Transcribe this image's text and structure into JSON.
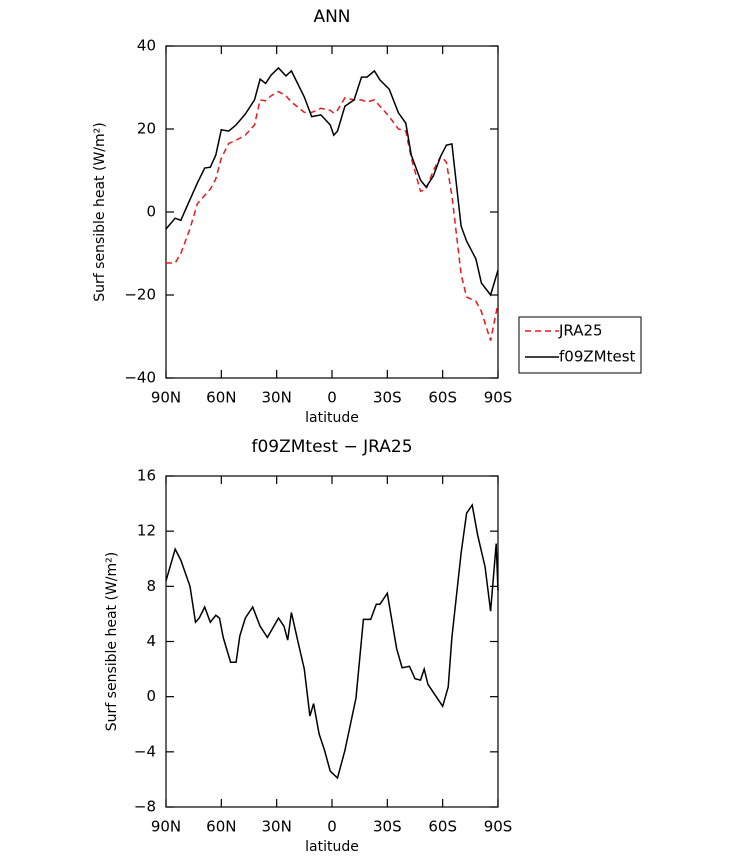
{
  "chart_data": [
    {
      "type": "line",
      "title": "ANN",
      "x_label": "latitude",
      "y_label": "Surf sensible heat (W/m²)",
      "x": [
        90,
        85,
        82,
        77,
        73,
        69,
        66,
        63,
        60,
        56,
        52,
        47,
        42,
        39,
        36,
        33,
        29,
        25,
        22,
        15,
        11,
        6,
        1,
        -1,
        -3,
        -7,
        -12,
        -16,
        -19,
        -23,
        -26,
        -31,
        -36,
        -40,
        -43,
        -48,
        -51,
        -55,
        -59,
        -62,
        -65,
        -70,
        -73,
        -78,
        -81,
        -86,
        -90
      ],
      "series": [
        {
          "name": "JRA25",
          "color": "#e8191c",
          "dash": true,
          "values": [
            -12.3,
            -12.3,
            -10,
            -4,
            2,
            4,
            5.5,
            8,
            13,
            16.5,
            17.3,
            18.5,
            21,
            27,
            26.8,
            28,
            29,
            28,
            26.5,
            24,
            24,
            25,
            24.5,
            23.8,
            24.5,
            27.5,
            27,
            27,
            26.5,
            27,
            25.5,
            23,
            20,
            19.5,
            13,
            5,
            5.5,
            10,
            13.5,
            12,
            4,
            -15,
            -20.5,
            -21.5,
            -24,
            -31,
            -22
          ]
        },
        {
          "name": "f09ZMtest",
          "color": "#000000",
          "dash": false,
          "values": [
            -4.1,
            -1.5,
            -2,
            3,
            7,
            10.6,
            10.8,
            13.7,
            19.8,
            19.5,
            21,
            23.6,
            27,
            32,
            31,
            33,
            34.7,
            32.8,
            34,
            27.7,
            23,
            23.4,
            21,
            18.5,
            19.5,
            25.5,
            27,
            32.5,
            32.5,
            34,
            31.8,
            29.6,
            23.9,
            21.4,
            13.7,
            7.7,
            6,
            8.7,
            13.5,
            16.1,
            16.4,
            -3.4,
            -7,
            -11.3,
            -17.1,
            -20,
            -14
          ]
        }
      ],
      "xlim": [
        90,
        -90
      ],
      "xticks": [
        {
          "value": 90,
          "label": "90N"
        },
        {
          "value": 60,
          "label": "60N"
        },
        {
          "value": 30,
          "label": "30N"
        },
        0,
        {
          "value": -30,
          "label": "30S"
        },
        {
          "value": -60,
          "label": "60S"
        },
        {
          "value": -90,
          "label": "90S"
        }
      ],
      "ylim": [
        -40,
        40
      ],
      "yticks": [
        {
          "value": -40,
          "label": "−40"
        },
        {
          "value": -20,
          "label": "−20"
        },
        0,
        20,
        40
      ],
      "legend": "right"
    },
    {
      "type": "line",
      "title": "f09ZMtest − JRA25",
      "x_label": "latitude",
      "y_label": "Surf sensible heat (W/m²)",
      "x": [
        90,
        85,
        82,
        77,
        74,
        72,
        69,
        66,
        63,
        61,
        59,
        55,
        52,
        50,
        47,
        43,
        39,
        35,
        29,
        26,
        24,
        22,
        19,
        15,
        12,
        10,
        7,
        4,
        1,
        -3,
        -7,
        -13,
        -17,
        -21,
        -24,
        -26,
        -30,
        -35,
        -38,
        -42,
        -45,
        -48,
        -50,
        -52,
        -58,
        -60,
        -63,
        -65,
        -70,
        -73,
        -76,
        -79,
        -83,
        -86,
        -89,
        -90
      ],
      "series": [
        {
          "name": "f09ZMtest − JRA25",
          "color": "#000000",
          "dash": false,
          "values": [
            8.4,
            10.7,
            9.9,
            8,
            5.4,
            5.7,
            6.5,
            5.4,
            5.9,
            5.7,
            4.3,
            2.5,
            2.5,
            4.4,
            5.7,
            6.5,
            5.1,
            4.3,
            5.7,
            5.1,
            4.1,
            6.1,
            4.3,
            2,
            -1.4,
            -0.5,
            -2.7,
            -3.9,
            -5.4,
            -5.9,
            -3.9,
            -0.1,
            5.6,
            5.6,
            6.7,
            6.7,
            7.5,
            3.5,
            2.1,
            2.2,
            1.3,
            1.2,
            2,
            0.9,
            -0.3,
            -0.7,
            0.7,
            4.3,
            10.4,
            13.3,
            13.9,
            11.7,
            9.4,
            6.2,
            11.1,
            7.7
          ]
        }
      ],
      "xlim": [
        90,
        -90
      ],
      "xticks": [
        {
          "value": 90,
          "label": "90N"
        },
        {
          "value": 60,
          "label": "60N"
        },
        {
          "value": 30,
          "label": "30N"
        },
        0,
        {
          "value": -30,
          "label": "30S"
        },
        {
          "value": -60,
          "label": "60S"
        },
        {
          "value": -90,
          "label": "90S"
        }
      ],
      "ylim": [
        -8,
        16
      ],
      "yticks": [
        {
          "value": -8,
          "label": "−8"
        },
        {
          "value": -4,
          "label": "−4"
        },
        0,
        4,
        8,
        12,
        16
      ]
    }
  ]
}
